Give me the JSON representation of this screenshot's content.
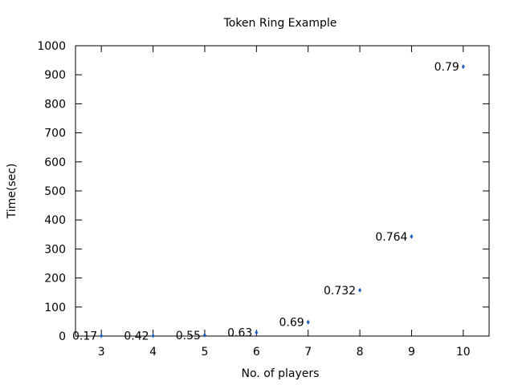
{
  "chart_data": {
    "type": "scatter",
    "title": "Token Ring Example",
    "xlabel": "No. of players",
    "ylabel": "Time(sec)",
    "xlim": [
      2.5,
      10.5
    ],
    "ylim": [
      0,
      1000
    ],
    "x_ticks": [
      3,
      4,
      5,
      6,
      7,
      8,
      9,
      10
    ],
    "y_ticks": [
      0,
      100,
      200,
      300,
      400,
      500,
      600,
      700,
      800,
      900,
      1000
    ],
    "grid": false,
    "point_color": "#1f5fbf",
    "points": [
      {
        "x": 3,
        "y": 1,
        "label": "0.17"
      },
      {
        "x": 4,
        "y": 1,
        "label": "0.42"
      },
      {
        "x": 5,
        "y": 3,
        "label": "0.55"
      },
      {
        "x": 6,
        "y": 12,
        "label": "0.63"
      },
      {
        "x": 7,
        "y": 48,
        "label": "0.69"
      },
      {
        "x": 8,
        "y": 158,
        "label": "0.732"
      },
      {
        "x": 9,
        "y": 343,
        "label": "0.764"
      },
      {
        "x": 10,
        "y": 928,
        "label": "0.79"
      }
    ]
  }
}
